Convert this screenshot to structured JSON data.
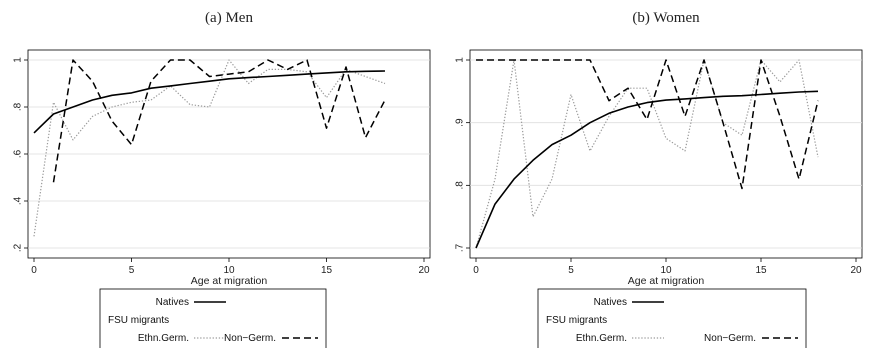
{
  "chart_data": [
    {
      "type": "line",
      "title": "(a) Men",
      "xlabel": "Age at migration",
      "ylabel": "",
      "xlim": [
        0,
        20
      ],
      "ylim": [
        0.2,
        1.0
      ],
      "xticks": [
        "0",
        "5",
        "10",
        "15",
        "20"
      ],
      "yticks": [
        ".2",
        ".4",
        ".6",
        ".8",
        "1"
      ],
      "ytick_values": [
        0.2,
        0.4,
        0.6,
        0.8,
        1.0
      ],
      "grid": true,
      "legend_position": "bottom",
      "legend": {
        "natives": "Natives",
        "group": "FSU migrants",
        "ethn": "Ethn.Germ.",
        "non": "Non−Germ."
      },
      "series": [
        {
          "name": "Natives",
          "style": "solid",
          "x": [
            0,
            1,
            2,
            3,
            4,
            5,
            6,
            7,
            8,
            9,
            10,
            11,
            12,
            13,
            14,
            15,
            16,
            17,
            18
          ],
          "y": [
            0.69,
            0.77,
            0.8,
            0.83,
            0.85,
            0.86,
            0.88,
            0.89,
            0.9,
            0.91,
            0.92,
            0.925,
            0.93,
            0.935,
            0.94,
            0.945,
            0.95,
            0.952,
            0.953
          ]
        },
        {
          "name": "Ethn.Germ.",
          "style": "dotted",
          "x": [
            0,
            1,
            2,
            3,
            4,
            5,
            6,
            7,
            8,
            9,
            10,
            11,
            12,
            13,
            14,
            15,
            16,
            17,
            18
          ],
          "y": [
            0.25,
            0.82,
            0.66,
            0.76,
            0.8,
            0.82,
            0.83,
            0.89,
            0.81,
            0.8,
            1.0,
            0.9,
            0.96,
            0.96,
            0.95,
            0.84,
            0.96,
            0.93,
            0.9
          ]
        },
        {
          "name": "Non−Germ.",
          "style": "dashed",
          "x": [
            1,
            2,
            3,
            4,
            5,
            6,
            7,
            8,
            9,
            10,
            11,
            12,
            13,
            14,
            15,
            16,
            17,
            18
          ],
          "y": [
            0.48,
            1.0,
            0.91,
            0.74,
            0.64,
            0.91,
            1.0,
            1.0,
            0.93,
            0.94,
            0.95,
            1.0,
            0.96,
            1.0,
            0.71,
            0.97,
            0.67,
            0.83
          ]
        }
      ]
    },
    {
      "type": "line",
      "title": "(b) Women",
      "xlabel": "Age at migration",
      "ylabel": "",
      "xlim": [
        0,
        20
      ],
      "ylim": [
        0.7,
        1.0
      ],
      "xticks": [
        "0",
        "5",
        "10",
        "15",
        "20"
      ],
      "yticks": [
        ".7",
        ".8",
        ".9",
        "1"
      ],
      "ytick_values": [
        0.7,
        0.8,
        0.9,
        1.0
      ],
      "grid": true,
      "legend_position": "bottom",
      "legend": {
        "natives": "Natives",
        "group": "FSU migrants",
        "ethn": "Ethn.Germ.",
        "non": "Non−Germ."
      },
      "series": [
        {
          "name": "Natives",
          "style": "solid",
          "x": [
            0,
            1,
            2,
            3,
            4,
            5,
            6,
            7,
            8,
            9,
            10,
            11,
            12,
            13,
            14,
            15,
            16,
            17,
            18
          ],
          "y": [
            0.7,
            0.77,
            0.81,
            0.84,
            0.865,
            0.88,
            0.9,
            0.915,
            0.925,
            0.932,
            0.936,
            0.938,
            0.94,
            0.942,
            0.943,
            0.945,
            0.947,
            0.949,
            0.95
          ]
        },
        {
          "name": "Ethn.Germ.",
          "style": "dotted",
          "x": [
            0,
            1,
            2,
            3,
            4,
            5,
            6,
            7,
            8,
            9,
            10,
            11,
            12,
            13,
            14,
            15,
            16,
            17,
            18
          ],
          "y": [
            0.7,
            0.81,
            1.0,
            0.75,
            0.81,
            0.945,
            0.855,
            0.91,
            0.955,
            0.955,
            0.875,
            0.855,
            1.0,
            0.9,
            0.88,
            1.0,
            0.965,
            1.0,
            0.845
          ]
        },
        {
          "name": "Non−Germ.",
          "style": "dashed",
          "x": [
            0,
            1,
            2,
            3,
            4,
            5,
            6,
            7,
            8,
            9,
            10,
            11,
            12,
            13,
            14,
            15,
            16,
            17,
            18
          ],
          "y": [
            1.0,
            1.0,
            1.0,
            1.0,
            1.0,
            1.0,
            1.0,
            0.935,
            0.955,
            0.905,
            1.0,
            0.91,
            1.0,
            0.9,
            0.795,
            1.0,
            0.91,
            0.81,
            0.935
          ]
        }
      ]
    }
  ]
}
